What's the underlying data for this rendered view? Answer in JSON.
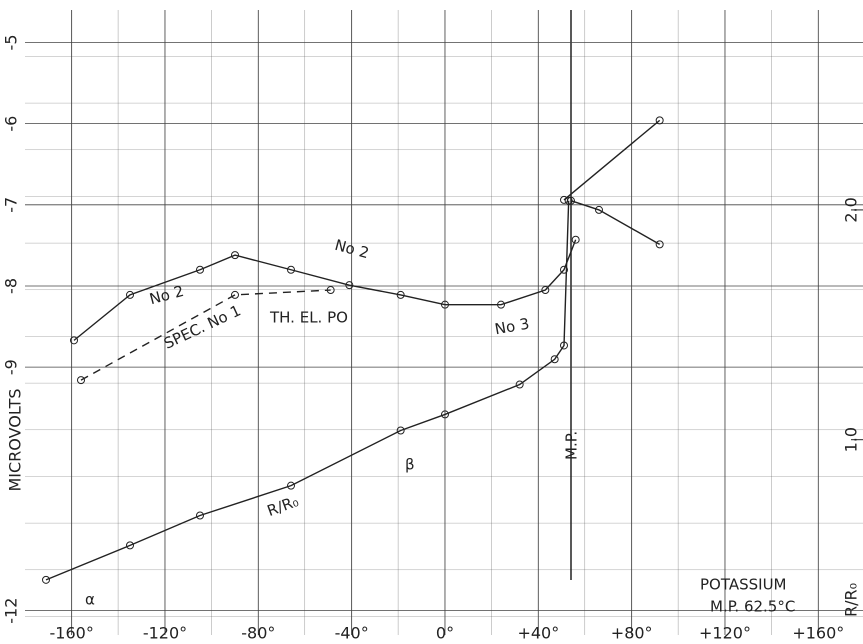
{
  "chart_data": {
    "type": "line",
    "y_label": "MICROVOLTS",
    "y2_label": "R/R₀",
    "xlim": [
      -180,
      180
    ],
    "ylim": [
      -12.3,
      -4.6
    ],
    "y2lim": [
      0.15,
      2.87
    ],
    "xticks": [
      {
        "value": -160,
        "label": "-160°"
      },
      {
        "value": -120,
        "label": "-120°"
      },
      {
        "value": -80,
        "label": "-80°"
      },
      {
        "value": -40,
        "label": "-40°"
      },
      {
        "value": 0,
        "label": "0°"
      },
      {
        "value": 40,
        "label": "+40°"
      },
      {
        "value": 80,
        "label": "+80°"
      },
      {
        "value": 120,
        "label": "+120°"
      },
      {
        "value": 160,
        "label": "+160°"
      }
    ],
    "yticks": [
      -5,
      -6,
      -7,
      -8,
      -9,
      -12
    ],
    "y2ticks": [
      {
        "value": 2,
        "label": "2.0"
      },
      {
        "value": 1,
        "label": "1.0"
      }
    ],
    "grid": true,
    "series": [
      {
        "color": "#222",
        "dash": false,
        "axis": "y",
        "x": [
          -159,
          -135,
          -105,
          -90,
          -66,
          -41,
          -19,
          0,
          24,
          43,
          51,
          56
        ],
        "values": [
          -8.67,
          -8.11,
          -7.8,
          -7.62,
          -7.8,
          -7.99,
          -8.11,
          -8.23,
          -8.23,
          -8.05,
          -7.8,
          -7.43
        ]
      },
      {
        "color": "#222",
        "dash": false,
        "axis": "y",
        "x": [
          51,
          92
        ],
        "values": [
          -6.94,
          -5.96
        ]
      },
      {
        "color": "#222",
        "dash": true,
        "axis": "y",
        "x": [
          -156,
          -90,
          -49
        ],
        "values": [
          -9.16,
          -8.11,
          -8.05
        ]
      },
      {
        "color": "#222",
        "dash": false,
        "axis": "y2",
        "x": [
          -171,
          -135,
          -105,
          -66,
          -19,
          0,
          32,
          47,
          51,
          53
        ],
        "values": [
          0.39,
          0.54,
          0.67,
          0.8,
          1.04,
          1.11,
          1.24,
          1.35,
          1.41,
          2.04
        ]
      },
      {
        "color": "#222",
        "dash": false,
        "axis": "y2",
        "x": [
          54,
          66,
          92
        ],
        "values": [
          2.04,
          2.0,
          1.85
        ]
      }
    ],
    "annotations": [
      "TH. EL. PO",
      "SPEC. No 1",
      "No 2",
      "No 2",
      "No 3",
      "R/R₀",
      "α",
      "β",
      "M.P.",
      "POTASSIUM",
      "M.P. 62.5°C"
    ]
  }
}
